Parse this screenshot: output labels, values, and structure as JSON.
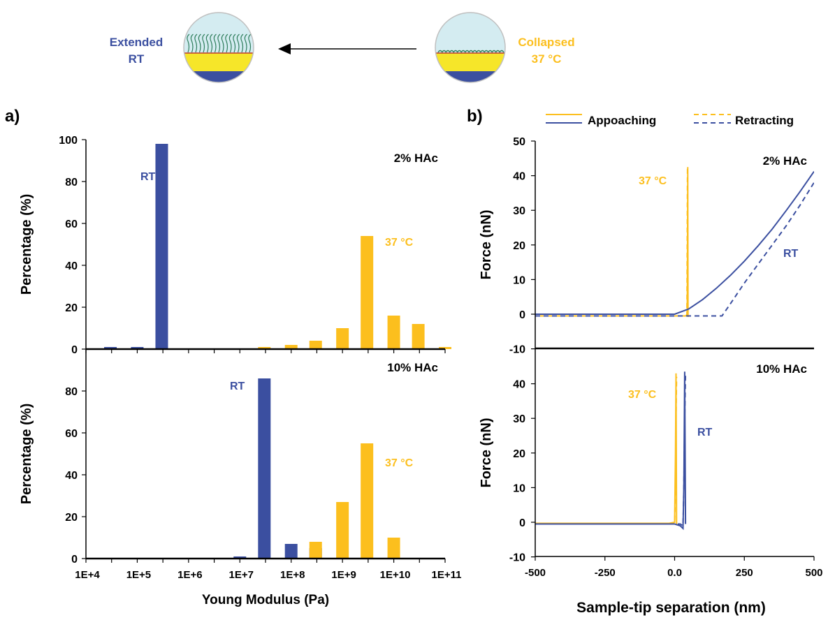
{
  "colors": {
    "blue": "#3b4fa0",
    "gold": "#fcbf1e",
    "sky": "#d4ecf1",
    "yellow": "#f6e629",
    "green": "#2e7d5b"
  },
  "header": {
    "left_label_line1": "Extended",
    "left_label_line2": "RT",
    "right_label_line1": "Collapsed",
    "right_label_line2": "37 °C",
    "left_icon": "extended-brush-circle",
    "right_icon": "collapsed-brush-circle",
    "arrow_icon": "left-arrow-icon"
  },
  "panels": {
    "a": "a)",
    "b": "b)"
  },
  "chart_data": [
    {
      "type": "bar",
      "panel": "a-top",
      "xscale": "log",
      "xlim": [
        10000,
        100000000000
      ],
      "x_tick_labels": [
        "1E+4",
        "1E+5",
        "1E+6",
        "1E+7",
        "1E+8",
        "1E+9",
        "1E+10",
        "1E+11"
      ],
      "ylim": [
        0,
        100
      ],
      "yticks": [
        0,
        20,
        40,
        60,
        80,
        100
      ],
      "ylabel": "Percentage (%)",
      "annotation": "2% HAc",
      "series": [
        {
          "name": "RT",
          "color": "blue",
          "x": [
            30000,
            100000,
            300000
          ],
          "values": [
            1,
            1,
            98
          ]
        },
        {
          "name": "37 °C",
          "color": "gold",
          "x": [
            30000000,
            100000000,
            300000000,
            1000000000,
            3000000000,
            10000000000,
            30000000000,
            100000000000
          ],
          "values": [
            1,
            2,
            4,
            10,
            54,
            16,
            12,
            1
          ]
        }
      ]
    },
    {
      "type": "bar",
      "panel": "a-bottom",
      "xscale": "log",
      "xlim": [
        10000,
        100000000000
      ],
      "x_tick_labels": [
        "1E+4",
        "1E+5",
        "1E+6",
        "1E+7",
        "1E+8",
        "1E+9",
        "1E+10",
        "1E+11"
      ],
      "xlabel": "Young Modulus (Pa)",
      "ylim": [
        0,
        100
      ],
      "yticks": [
        0,
        20,
        40,
        60,
        80
      ],
      "ylabel": "Percentage (%)",
      "annotation": "10% HAc",
      "series": [
        {
          "name": "RT",
          "color": "blue",
          "x": [
            10000000,
            30000000,
            100000000,
            300000000
          ],
          "values": [
            1,
            86,
            7,
            5
          ]
        },
        {
          "name": "37 °C",
          "color": "gold",
          "x": [
            300000000,
            1000000000,
            3000000000,
            10000000000
          ],
          "values": [
            8,
            27,
            55,
            10
          ]
        }
      ]
    },
    {
      "type": "line",
      "panel": "b-top",
      "xlim": [
        -500,
        500
      ],
      "ylim": [
        -10,
        50
      ],
      "yticks": [
        -10,
        0,
        10,
        20,
        30,
        40,
        50
      ],
      "ylabel": "Force (nN)",
      "annotation": "2% HAc",
      "legend": {
        "placement": "top",
        "approach": "Appoaching",
        "retract": "Retracting"
      },
      "series": [
        {
          "name": "37 °C",
          "color": "gold",
          "style": "solid",
          "x": [
            -500,
            40,
            45,
            46,
            47,
            48
          ],
          "y": [
            -0.5,
            -0.5,
            0,
            20,
            42.5,
            -0.8
          ]
        },
        {
          "name": "37 °C",
          "color": "gold",
          "style": "dashed",
          "x": [
            -500,
            42,
            44,
            45,
            46
          ],
          "y": [
            -0.5,
            -0.5,
            0,
            20,
            42
          ]
        },
        {
          "name": "RT",
          "color": "blue",
          "style": "solid",
          "x": [
            -500,
            0,
            50,
            100,
            150,
            200,
            250,
            300,
            350,
            400,
            450,
            500
          ],
          "y": [
            0,
            0,
            1.5,
            4.2,
            7.5,
            11.2,
            15.3,
            19.8,
            24.6,
            29.9,
            35.4,
            41.2
          ]
        },
        {
          "name": "RT",
          "color": "blue",
          "style": "dashed",
          "x": [
            -500,
            170,
            200,
            250,
            300,
            350,
            400,
            450,
            500
          ],
          "y": [
            -0.5,
            -0.5,
            3,
            9,
            14.5,
            20,
            25.5,
            31.5,
            38
          ]
        }
      ]
    },
    {
      "type": "line",
      "panel": "b-bottom",
      "xlim": [
        -500,
        500
      ],
      "ylim": [
        -10,
        50
      ],
      "xticks": [
        -500,
        -250,
        0,
        250,
        500
      ],
      "x_tick_labels": [
        "-500",
        "-250",
        "0.0",
        "250",
        "500"
      ],
      "yticks": [
        -10,
        0,
        10,
        20,
        30,
        40
      ],
      "xlabel": "Sample-tip separation (nm)",
      "ylabel": "Force (nN)",
      "annotation": "10% HAc",
      "series": [
        {
          "name": "37 °C",
          "color": "gold",
          "style": "solid",
          "x": [
            -500,
            -20,
            0,
            3,
            5,
            7
          ],
          "y": [
            -0.3,
            -0.3,
            0,
            20,
            43,
            -0.5
          ]
        },
        {
          "name": "37 °C",
          "color": "gold",
          "style": "dashed",
          "x": [
            -500,
            0,
            3,
            5,
            7
          ],
          "y": [
            -0.4,
            -0.4,
            10,
            30,
            42
          ]
        },
        {
          "name": "RT",
          "color": "blue",
          "style": "solid",
          "x": [
            -500,
            0,
            20,
            30,
            33,
            36,
            39
          ],
          "y": [
            -0.5,
            -0.5,
            -1,
            -1.8,
            10,
            43.5,
            -0.5
          ]
        },
        {
          "name": "RT",
          "color": "blue",
          "style": "dashed",
          "x": [
            -500,
            20,
            30,
            33,
            36,
            39
          ],
          "y": [
            -0.5,
            -0.5,
            -1,
            10,
            30,
            43
          ]
        }
      ]
    }
  ]
}
